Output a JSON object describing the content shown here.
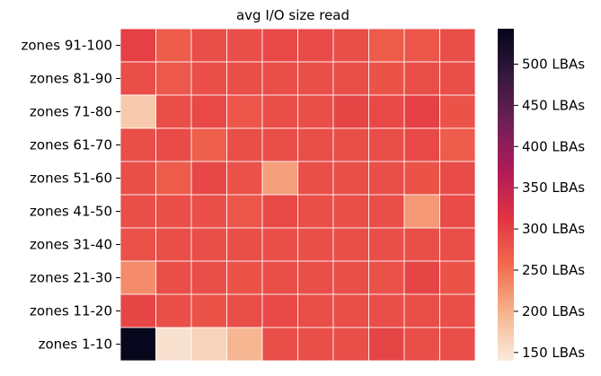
{
  "chart_data": {
    "type": "heatmap",
    "title": "avg I/O size read",
    "xlabel": "",
    "ylabel": "",
    "row_labels": [
      "zones 91-100",
      "zones 81-90",
      "zones 71-80",
      "zones 61-70",
      "zones 51-60",
      "zones 41-50",
      "zones 31-40",
      "zones 21-30",
      "zones 11-20",
      "zones 1-10"
    ],
    "column_count": 10,
    "values": [
      [
        300,
        270,
        285,
        283,
        290,
        288,
        285,
        272,
        278,
        285
      ],
      [
        285,
        275,
        283,
        285,
        285,
        285,
        285,
        280,
        285,
        285
      ],
      [
        175,
        285,
        290,
        278,
        285,
        285,
        295,
        290,
        300,
        280
      ],
      [
        285,
        288,
        268,
        285,
        285,
        285,
        285,
        285,
        290,
        270
      ],
      [
        285,
        272,
        292,
        282,
        215,
        285,
        285,
        285,
        280,
        288
      ],
      [
        285,
        285,
        283,
        278,
        290,
        285,
        285,
        285,
        220,
        288
      ],
      [
        282,
        285,
        285,
        285,
        285,
        285,
        285,
        285,
        285,
        285
      ],
      [
        230,
        285,
        285,
        280,
        285,
        285,
        285,
        282,
        295,
        280
      ],
      [
        295,
        285,
        280,
        285,
        290,
        285,
        285,
        285,
        285,
        285
      ],
      [
        540,
        150,
        165,
        195,
        285,
        285,
        285,
        295,
        285,
        285
      ]
    ],
    "colorbar": {
      "vmin": 140,
      "vmax": 543,
      "ticks": [
        150,
        200,
        250,
        300,
        350,
        400,
        450,
        500
      ],
      "tick_labels": [
        "150 LBAs",
        "200 LBAs",
        "250 LBAs",
        "300 LBAs",
        "350 LBAs",
        "400 LBAs",
        "450 LBAs",
        "500 LBAs"
      ]
    },
    "colormap": [
      "#faebdd",
      "#f6b48e",
      "#f26c4f",
      "#e13342",
      "#b01b5a",
      "#701f57",
      "#35193e",
      "#03051a"
    ],
    "cell_border_color": "#ffffff",
    "grid": false
  }
}
